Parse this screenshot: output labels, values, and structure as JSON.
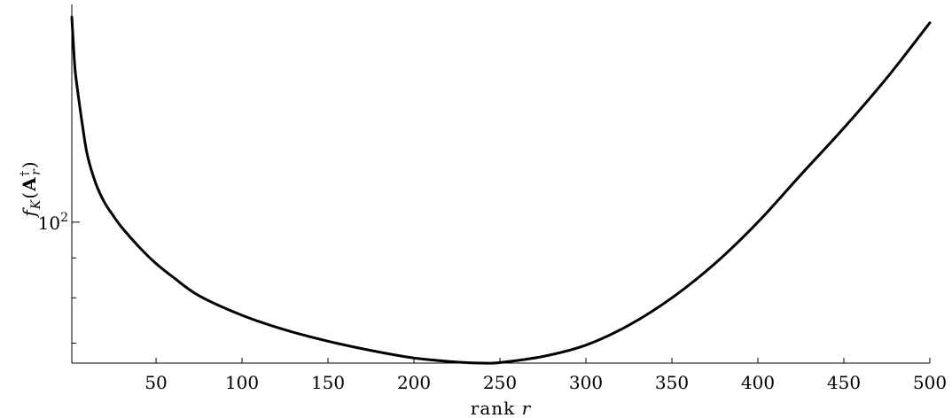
{
  "chart_data": {
    "type": "line",
    "xlabel": "rank r",
    "ylabel": "f_K(A_r^†)",
    "xlim": [
      1,
      500
    ],
    "ylim": [
      66,
      190
    ],
    "y_scale": "log",
    "x_ticks": [
      50,
      100,
      150,
      200,
      250,
      300,
      350,
      400,
      450,
      500
    ],
    "y_tick_labels": [
      {
        "base": "10",
        "exponent": "2",
        "value": 100
      }
    ],
    "y_minor_ticks": [
      70,
      80,
      90,
      200
    ],
    "grid": false,
    "legend": "none",
    "series": [
      {
        "color": "#000000",
        "x": [
          1,
          2,
          3,
          5,
          7,
          10,
          15,
          20,
          25,
          30,
          40,
          50,
          60,
          75,
          100,
          125,
          150,
          175,
          200,
          225,
          240,
          250,
          275,
          300,
          325,
          350,
          375,
          400,
          425,
          450,
          475,
          500
        ],
        "y": [
          183,
          168,
          156,
          144,
          134,
          122,
          112,
          106,
          102,
          98.5,
          93,
          88.5,
          85,
          80.5,
          76,
          72.8,
          70.4,
          68.5,
          67.0,
          66.2,
          66.0,
          66.1,
          67.3,
          69.6,
          73.8,
          80.0,
          88.5,
          100,
          115,
          132,
          153,
          180
        ]
      }
    ]
  }
}
